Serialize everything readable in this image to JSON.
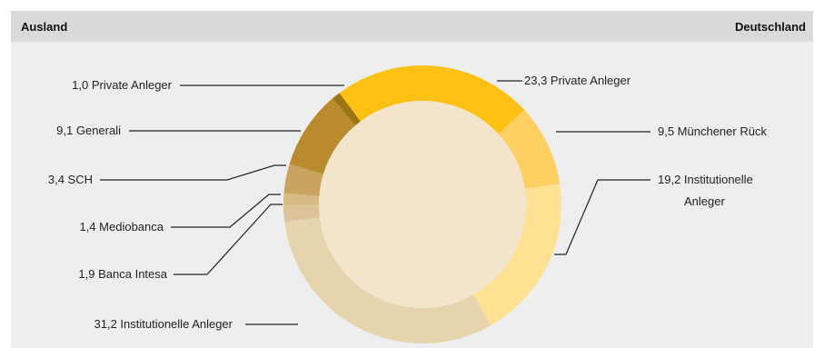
{
  "header": {
    "left_title": "Ausland",
    "right_title": "Deutschland"
  },
  "colors": {
    "background": "#eeeeee",
    "header": "#dadada",
    "center": "#f2e5cc"
  },
  "chart_data": {
    "type": "pie",
    "variant": "donut",
    "unit": "%",
    "slices": [
      {
        "group": "Deutschland",
        "label": "Private Anleger",
        "value_text": "23,3",
        "value": 23.3,
        "color": "#fdc114"
      },
      {
        "group": "Deutschland",
        "label": "Münchener Rück",
        "value_text": "9,5",
        "value": 9.5,
        "color": "#fed064"
      },
      {
        "group": "Deutschland",
        "label": "Institutionelle Anleger",
        "value_text": "19,2",
        "value": 19.2,
        "color": "#fee193"
      },
      {
        "group": "Ausland",
        "label": "Institutionelle Anleger",
        "value_text": "31,2",
        "value": 31.2,
        "color": "#e6d4ad"
      },
      {
        "group": "Ausland",
        "label": "Banca Intesa",
        "value_text": "1,9",
        "value": 1.9,
        "color": "#dcc39a"
      },
      {
        "group": "Ausland",
        "label": "Mediobanca",
        "value_text": "1,4",
        "value": 1.4,
        "color": "#d6b983"
      },
      {
        "group": "Ausland",
        "label": "SCH",
        "value_text": "3,4",
        "value": 3.4,
        "color": "#c9a35f"
      },
      {
        "group": "Ausland",
        "label": "Generali",
        "value_text": "9,1",
        "value": 9.1,
        "color": "#b98b2c"
      },
      {
        "group": "Ausland",
        "label": "Private Anleger",
        "value_text": "1,0",
        "value": 1.0,
        "color": "#9b7415"
      }
    ]
  }
}
